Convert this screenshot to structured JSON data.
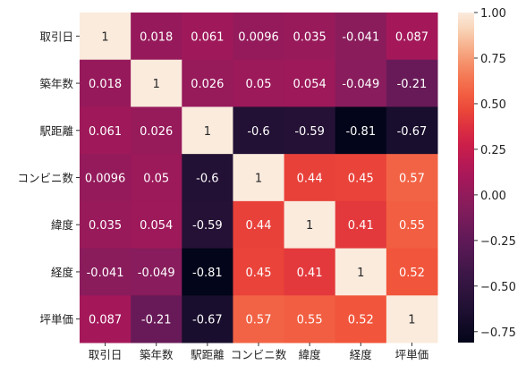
{
  "chart_data": {
    "type": "heatmap",
    "title": "",
    "xlabel": "",
    "ylabel": "",
    "rows": [
      "取引日",
      "築年数",
      "駅距離",
      "コンビニ数",
      "緯度",
      "経度",
      "坪単価"
    ],
    "columns": [
      "取引日",
      "築年数",
      "駅距離",
      "コンビニ数",
      "緯度",
      "経度",
      "坪単価"
    ],
    "values": [
      [
        1,
        0.018,
        0.061,
        0.0096,
        0.035,
        -0.041,
        0.087
      ],
      [
        0.018,
        1,
        0.026,
        0.05,
        0.054,
        -0.049,
        -0.21
      ],
      [
        0.061,
        0.026,
        1,
        -0.6,
        -0.59,
        -0.81,
        -0.67
      ],
      [
        0.0096,
        0.05,
        -0.6,
        1,
        0.44,
        0.45,
        0.57
      ],
      [
        0.035,
        0.054,
        -0.59,
        0.44,
        1,
        0.41,
        0.55
      ],
      [
        -0.041,
        -0.049,
        -0.81,
        0.45,
        0.41,
        1,
        0.52
      ],
      [
        0.087,
        -0.21,
        -0.67,
        0.57,
        0.55,
        0.52,
        1
      ]
    ],
    "annotations": [
      [
        "1",
        "0.018",
        "0.061",
        "0.0096",
        "0.035",
        "-0.041",
        "0.087"
      ],
      [
        "0.018",
        "1",
        "0.026",
        "0.05",
        "0.054",
        "-0.049",
        "-0.21"
      ],
      [
        "0.061",
        "0.026",
        "1",
        "-0.6",
        "-0.59",
        "-0.81",
        "-0.67"
      ],
      [
        "0.0096",
        "0.05",
        "-0.6",
        "1",
        "0.44",
        "0.45",
        "0.57"
      ],
      [
        "0.035",
        "0.054",
        "-0.59",
        "0.44",
        "1",
        "0.41",
        "0.55"
      ],
      [
        "-0.041",
        "-0.049",
        "-0.81",
        "0.45",
        "0.41",
        "1",
        "0.52"
      ],
      [
        "0.087",
        "-0.21",
        "-0.67",
        "0.57",
        "0.55",
        "0.52",
        "1"
      ]
    ],
    "colorbar": {
      "vmin": -0.81,
      "vmax": 1,
      "ticks": [
        -0.75,
        -0.5,
        -0.25,
        0,
        0.25,
        0.5,
        0.75,
        1
      ],
      "tick_labels": [
        "−0.75",
        "−0.50",
        "−0.25",
        "0.00",
        "0.25",
        "0.50",
        "0.75",
        "1.00"
      ]
    },
    "colormap": "rocket",
    "grid": false,
    "legend": "colorbar-right"
  }
}
